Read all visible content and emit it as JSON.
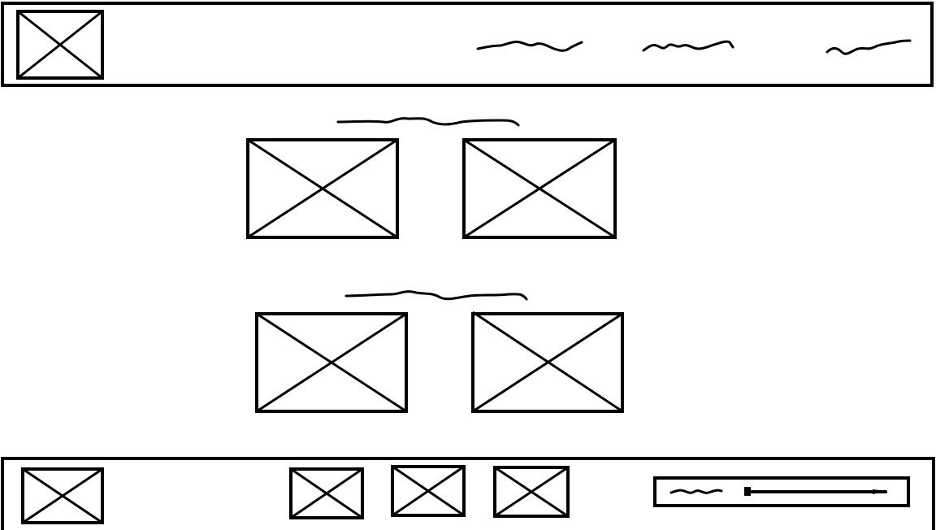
{
  "header": {
    "logo_icon": "image-placeholder-icon",
    "nav_items": [
      "placeholder-text",
      "placeholder-text",
      "placeholder-text"
    ]
  },
  "main": {
    "sections": [
      {
        "heading": "placeholder-text",
        "images": [
          "image-placeholder-icon",
          "image-placeholder-icon"
        ]
      },
      {
        "heading": "placeholder-text",
        "images": [
          "image-placeholder-icon",
          "image-placeholder-icon"
        ]
      }
    ]
  },
  "footer": {
    "logo_icon": "image-placeholder-icon",
    "buttons": [
      "image-placeholder-icon",
      "image-placeholder-icon",
      "image-placeholder-icon"
    ],
    "slider": {
      "label": "placeholder-text",
      "value": 1.0
    }
  },
  "colors": {
    "stroke": "#000000",
    "background": "#ffffff"
  }
}
